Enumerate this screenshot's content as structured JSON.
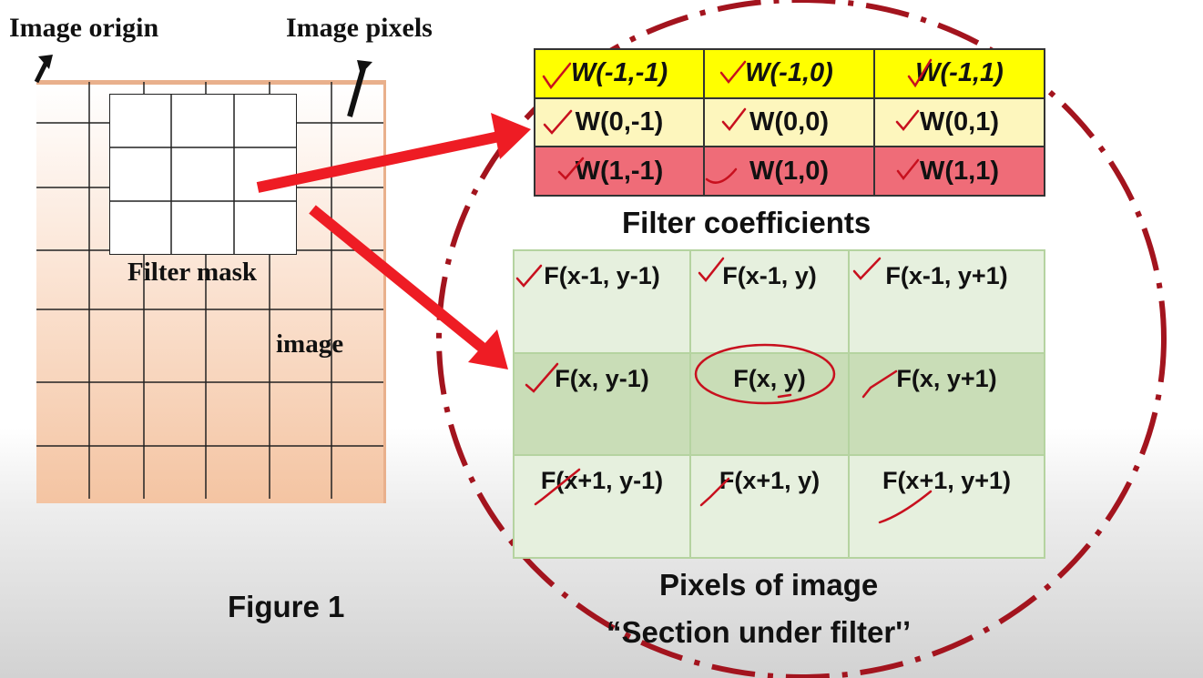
{
  "labels": {
    "image_origin": "Image origin",
    "image_pixels": "Image pixels",
    "filter_mask": "Filter mask",
    "image": "image"
  },
  "coefficients": {
    "rows": [
      [
        "W(-1,-1)",
        "W(-1,0)",
        "W(-1,1)"
      ],
      [
        "W(0,-1)",
        "W(0,0)",
        "W(0,1)"
      ],
      [
        "W(1,-1)",
        "W(1,0)",
        "W(1,1)"
      ]
    ],
    "caption": "Filter coefficients",
    "row_colors": [
      "#ffff00",
      "#fdf6bd",
      "#ef6c78"
    ]
  },
  "pixels": {
    "rows": [
      [
        "F(x-1, y-1)",
        "F(x-1, y)",
        "F(x-1, y+1)"
      ],
      [
        "F(x, y-1)",
        "F(x, y)",
        "F(x, y+1)"
      ],
      [
        "F(x+1, y-1)",
        "F(x+1, y)",
        "F(x+1, y+1)"
      ]
    ],
    "caption_line1": "Pixels of image",
    "caption_line2": "“Section under filter'ʼ"
  },
  "figure_label": "Figure 1",
  "colors": {
    "arrow_red": "#ee1c24",
    "annotation_red": "#c8101e",
    "dashdot_circle": "#a3141e"
  }
}
